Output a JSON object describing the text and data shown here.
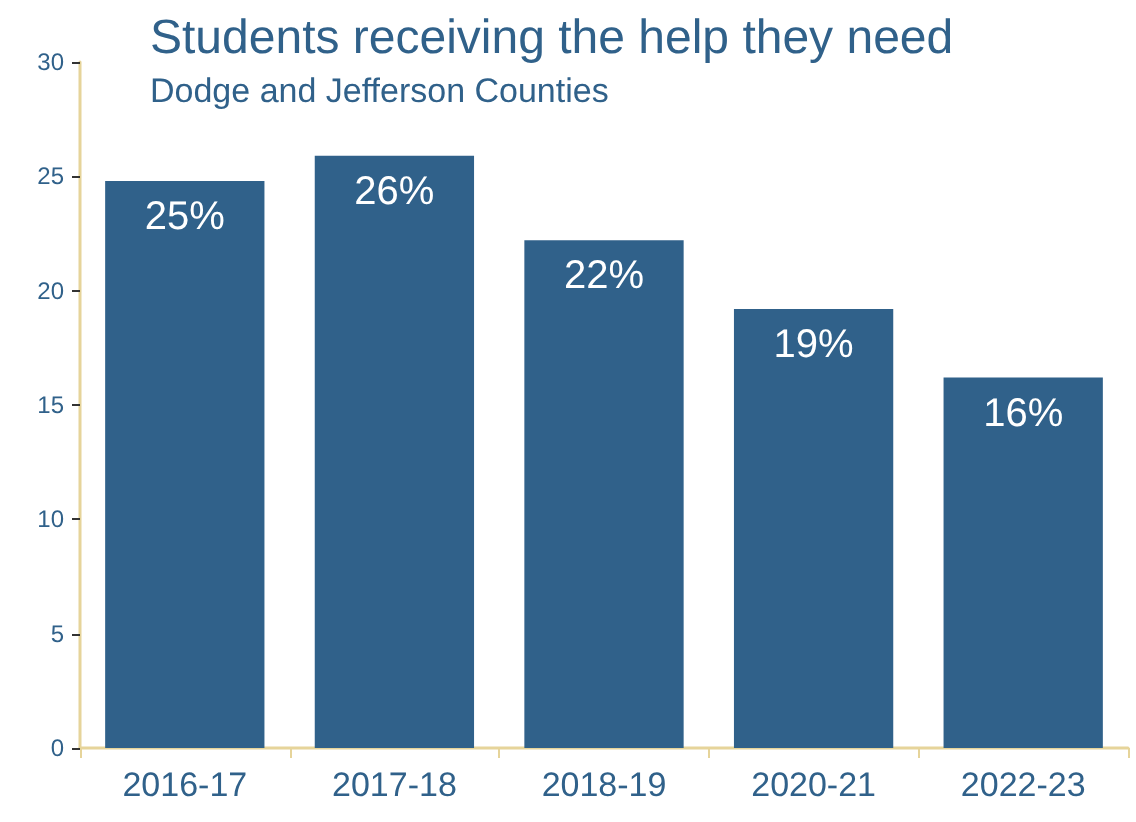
{
  "chart_data": {
    "type": "bar",
    "title": "Students receiving the help they need",
    "subtitle": "Dodge and Jefferson Counties",
    "categories": [
      "2016-17",
      "2017-18",
      "2018-19",
      "2020-21",
      "2022-23"
    ],
    "values": [
      24.8,
      25.9,
      22.2,
      19.2,
      16.2
    ],
    "color": "#30618a",
    "value_labels": [
      "25%",
      "26%",
      "22%",
      "19%",
      "16%"
    ],
    "ylim": [
      0,
      30
    ],
    "yticks": [
      0,
      5,
      10,
      15,
      20,
      25,
      30
    ],
    "grid": false
  }
}
